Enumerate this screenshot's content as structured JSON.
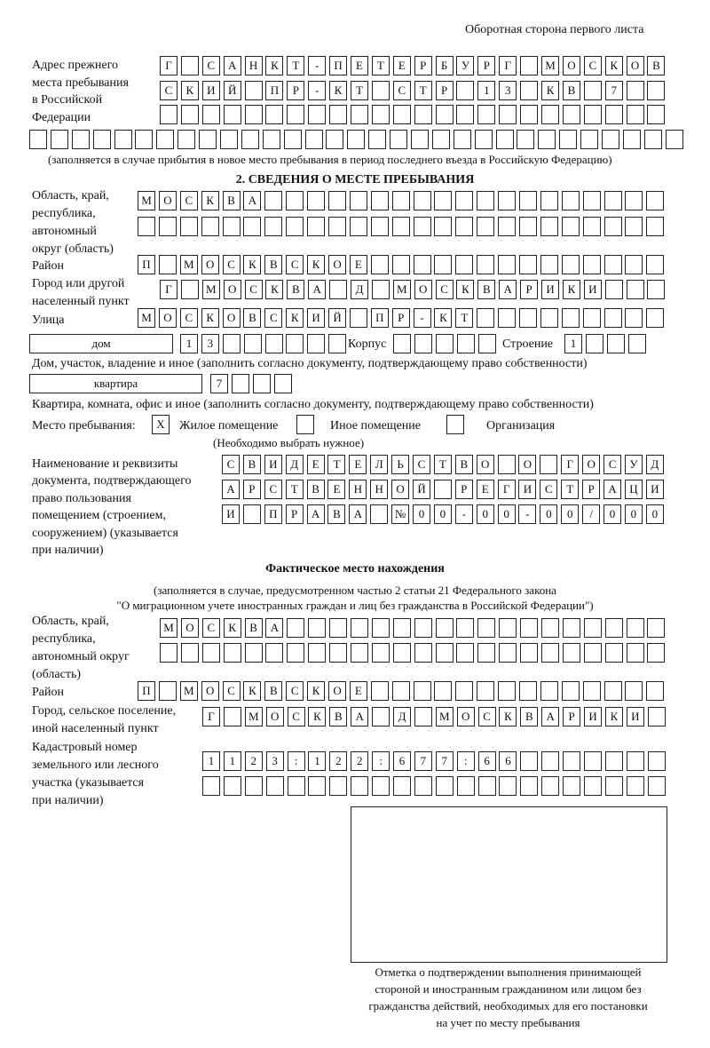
{
  "header": "Оборотная сторона первого листа",
  "prev_address": {
    "label": [
      "Адрес прежнего",
      "места пребывания",
      "в Российской",
      "Федерации"
    ],
    "rows": [
      [
        "Г",
        "",
        "С",
        "А",
        "Н",
        "К",
        "Т",
        "-",
        "П",
        "Е",
        "Т",
        "Е",
        "Р",
        "Б",
        "У",
        "Р",
        "Г",
        "",
        "М",
        "О",
        "С",
        "К",
        "О",
        "В"
      ],
      [
        "С",
        "К",
        "И",
        "Й",
        "",
        "П",
        "Р",
        "-",
        "К",
        "Т",
        "",
        "С",
        "Т",
        "Р",
        "",
        "1",
        "3",
        "",
        "К",
        "В",
        "",
        "7",
        "",
        ""
      ],
      [
        "",
        "",
        "",
        "",
        "",
        "",
        "",
        "",
        "",
        "",
        "",
        "",
        "",
        "",
        "",
        "",
        "",
        "",
        "",
        "",
        "",
        "",
        "",
        ""
      ],
      [
        "",
        "",
        "",
        "",
        "",
        "",
        "",
        "",
        "",
        "",
        "",
        "",
        "",
        "",
        "",
        "",
        "",
        "",
        "",
        "",
        "",
        "",
        "",
        "",
        "",
        "",
        "",
        "",
        "",
        "",
        ""
      ]
    ],
    "note": "(заполняется в случае прибытия в новое место пребывания в период последнего въезда в Российскую Федерацию)"
  },
  "section2": {
    "title": "2. СВЕДЕНИЯ О МЕСТЕ ПРЕБЫВАНИЯ",
    "region_label": [
      "Область, край,",
      "республика,",
      "автономный",
      "округ (область)"
    ],
    "region_rows": [
      [
        "М",
        "О",
        "С",
        "К",
        "В",
        "А",
        "",
        "",
        "",
        "",
        "",
        "",
        "",
        "",
        "",
        "",
        "",
        "",
        "",
        "",
        "",
        "",
        "",
        "",
        ""
      ],
      [
        "",
        "",
        "",
        "",
        "",
        "",
        "",
        "",
        "",
        "",
        "",
        "",
        "",
        "",
        "",
        "",
        "",
        "",
        "",
        "",
        "",
        "",
        "",
        "",
        ""
      ]
    ],
    "district_label": "Район",
    "district_row": [
      "П",
      "",
      "М",
      "О",
      "С",
      "К",
      "В",
      "С",
      "К",
      "О",
      "Е",
      "",
      "",
      "",
      "",
      "",
      "",
      "",
      "",
      "",
      "",
      "",
      "",
      "",
      ""
    ],
    "city_label": [
      "Город или другой",
      "населенный пункт"
    ],
    "city_row": [
      "Г",
      "",
      "М",
      "О",
      "С",
      "К",
      "В",
      "А",
      "",
      "Д",
      "",
      "М",
      "О",
      "С",
      "К",
      "В",
      "А",
      "Р",
      "И",
      "К",
      "И",
      "",
      "",
      ""
    ],
    "street_label": "Улица",
    "street_row": [
      "М",
      "О",
      "С",
      "К",
      "О",
      "В",
      "С",
      "К",
      "И",
      "Й",
      "",
      "П",
      "Р",
      "-",
      "К",
      "Т",
      "",
      "",
      "",
      "",
      "",
      "",
      "",
      "",
      ""
    ],
    "house_type": "дом",
    "house_cells": [
      "1",
      "3",
      "",
      "",
      "",
      "",
      "",
      ""
    ],
    "korpus_label": "Корпус",
    "korpus_cells": [
      "",
      "",
      "",
      "",
      ""
    ],
    "building_label": "Строение",
    "building_cells": [
      "1",
      "",
      "",
      ""
    ],
    "house_note": "Дом, участок, владение и иное (заполнить согласно документу, подтверждающему право собственности)",
    "flat_type": "квартира",
    "flat_cells": [
      "7",
      "",
      "",
      ""
    ],
    "flat_note": "Квартира, комната, офис и иное (заполнить согласно документу, подтверждающему право собственности)",
    "stay_label": "Место пребывания:",
    "options": [
      {
        "label": "Жилое помещение",
        "mark": "X"
      },
      {
        "label": "Иное помещение",
        "mark": ""
      },
      {
        "label": "Организация",
        "mark": ""
      }
    ],
    "choose_note": "(Необходимо выбрать нужное)",
    "doc_label": [
      "Наименование и реквизиты",
      "документа, подтверждающего",
      "право пользования",
      "помещением (строением,",
      "сооружением) (указывается",
      "при наличии)"
    ],
    "doc_rows": [
      [
        "С",
        "В",
        "И",
        "Д",
        "Е",
        "Т",
        "Е",
        "Л",
        "Ь",
        "С",
        "Т",
        "В",
        "О",
        "",
        "О",
        "",
        "Г",
        "О",
        "С",
        "У",
        "Д"
      ],
      [
        "А",
        "Р",
        "С",
        "Т",
        "В",
        "Е",
        "Н",
        "Н",
        "О",
        "Й",
        "",
        "Р",
        "Е",
        "Г",
        "И",
        "С",
        "Т",
        "Р",
        "А",
        "Ц",
        "И"
      ],
      [
        "И",
        "",
        "П",
        "Р",
        "А",
        "В",
        "А",
        "",
        "№",
        "0",
        "0",
        "-",
        "0",
        "0",
        "-",
        "0",
        "0",
        "/",
        "0",
        "0",
        "0"
      ]
    ]
  },
  "actual": {
    "title": "Фактическое место нахождения",
    "note": [
      "(заполняется в случае, предусмотренном частью 2 статьи 21 Федерального закона",
      "\"О миграционном учете иностранных граждан и лиц без гражданства в Российской Федерации\")"
    ],
    "region_label": [
      "Область, край,",
      "республика,",
      "автономный округ",
      "(область)"
    ],
    "region_rows": [
      [
        "М",
        "О",
        "С",
        "К",
        "В",
        "А",
        "",
        "",
        "",
        "",
        "",
        "",
        "",
        "",
        "",
        "",
        "",
        "",
        "",
        "",
        "",
        "",
        "",
        ""
      ],
      [
        "",
        "",
        "",
        "",
        "",
        "",
        "",
        "",
        "",
        "",
        "",
        "",
        "",
        "",
        "",
        "",
        "",
        "",
        "",
        "",
        "",
        "",
        "",
        ""
      ]
    ],
    "district_label": "Район",
    "district_row": [
      "П",
      "",
      "М",
      "О",
      "С",
      "К",
      "В",
      "С",
      "К",
      "О",
      "Е",
      "",
      "",
      "",
      "",
      "",
      "",
      "",
      "",
      "",
      "",
      "",
      "",
      "",
      ""
    ],
    "city_label": [
      "Город, сельское поселение,",
      "иной населенный пункт"
    ],
    "city_row": [
      "Г",
      "",
      "М",
      "О",
      "С",
      "К",
      "В",
      "А",
      "",
      "Д",
      "",
      "М",
      "О",
      "С",
      "К",
      "В",
      "А",
      "Р",
      "И",
      "К",
      "И",
      ""
    ],
    "cadastre_label": [
      "Кадастровый номер",
      "земельного или лесного",
      "участка (указывается",
      "при наличии)"
    ],
    "cadastre_rows": [
      [
        "1",
        "1",
        "2",
        "3",
        ":",
        "1",
        "2",
        "2",
        ":",
        "6",
        "7",
        "7",
        ":",
        "6",
        "6",
        "",
        "",
        "",
        "",
        "",
        "",
        ""
      ],
      [
        "",
        "",
        "",
        "",
        "",
        "",
        "",
        "",
        "",
        "",
        "",
        "",
        "",
        "",
        "",
        "",
        "",
        "",
        "",
        "",
        "",
        ""
      ]
    ]
  },
  "confirmation": [
    "Отметка о подтверждении выполнения принимающей",
    "стороной и иностранным гражданином или лицом без",
    "гражданства действий, необходимых для его постановки",
    "на учет по месту пребывания"
  ]
}
